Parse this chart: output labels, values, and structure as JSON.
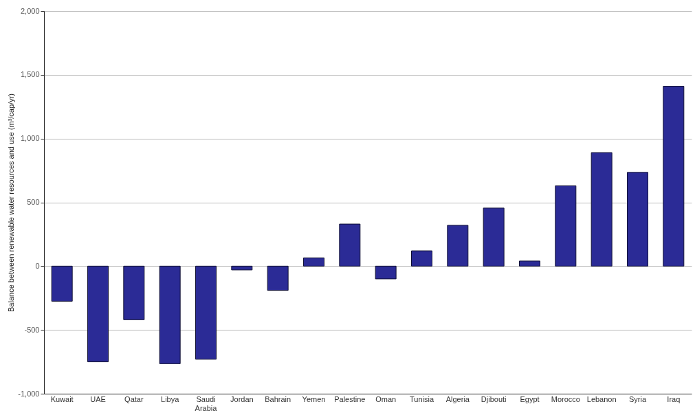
{
  "chart_data": {
    "type": "bar",
    "ylabel": "Balance between renewable water resources and use (m³/cap/yr)",
    "categories": [
      "Kuwait",
      "UAE",
      "Qatar",
      "Libya",
      "Saudi Arabia",
      "Jordan",
      "Bahrain",
      "Yemen",
      "Palestine",
      "Oman",
      "Tunisia",
      "Algeria",
      "Djibouti",
      "Egypt",
      "Morocco",
      "Lebanon",
      "Syria",
      "Iraq"
    ],
    "values": [
      -275,
      -750,
      -420,
      -765,
      -730,
      -30,
      -190,
      65,
      330,
      -100,
      120,
      320,
      455,
      40,
      630,
      890,
      735,
      1410
    ],
    "color": "#2b2b96",
    "ylim": [
      -1000,
      2000
    ],
    "yticks": [
      {
        "value": -1000,
        "label": "-1,000"
      },
      {
        "value": -500,
        "label": "-500"
      },
      {
        "value": 0,
        "label": "0"
      },
      {
        "value": 500,
        "label": "500"
      },
      {
        "value": 1000,
        "label": "1,000"
      },
      {
        "value": 1500,
        "label": "1,500"
      },
      {
        "value": 2000,
        "label": "2,000"
      }
    ],
    "grid": "y"
  }
}
